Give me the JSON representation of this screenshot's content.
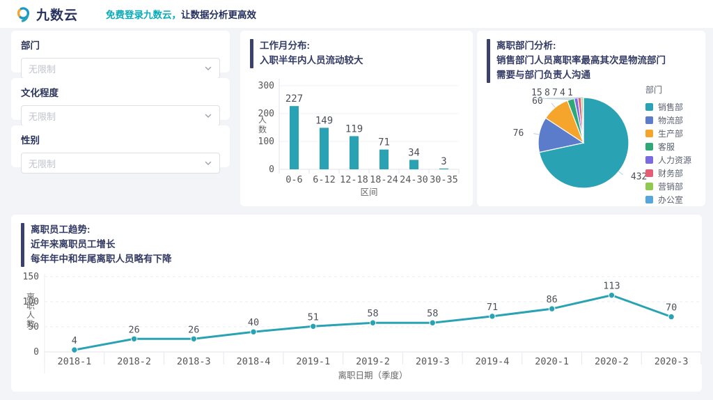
{
  "header": {
    "logo_text": "九数云",
    "promo_highlight": "免费登录九数云，",
    "promo_rest": "让数据分析更高效"
  },
  "filters": [
    {
      "label": "部门",
      "value": "无限制"
    },
    {
      "label": "文化程度",
      "value": "无限制"
    },
    {
      "label": "性别",
      "value": "无限制"
    }
  ],
  "colors": {
    "brand_teal": "#08abb8",
    "brand_navy": "#28315e",
    "title_navy": "#333a63",
    "accent_bar": "#3a426b",
    "page_bg": "#f2f4f8",
    "chart_text": "#555555",
    "value_label": "#4c4f58"
  },
  "chart_data": [
    {
      "type": "bar",
      "title_lines": [
        "工作月分布:",
        "入职半年内人员流动较大"
      ],
      "categories": [
        "0-6",
        "6-12",
        "12-18",
        "18-24",
        "24-30",
        "30-35"
      ],
      "values": [
        227,
        149,
        119,
        71,
        34,
        3
      ],
      "xlabel": "区间",
      "ylabel": "人数",
      "ylim": [
        0,
        300
      ],
      "yticks": [
        0,
        100,
        200,
        300
      ],
      "grid": true,
      "legend_position": "none",
      "color": "#29a3b4"
    },
    {
      "type": "pie",
      "title_lines": [
        "离职部门分析:",
        "销售部门人员离职率最高其次是物流部门",
        "需要与部门负责人沟通"
      ],
      "legend_title": "部门",
      "legend_position": "right",
      "labels": [
        "销售部",
        "物流部",
        "生产部",
        "客服",
        "人力资源",
        "财务部",
        "营销部",
        "办公室"
      ],
      "values": [
        432,
        76,
        60,
        15,
        8,
        7,
        4,
        1
      ],
      "colors": [
        "#29a3b4",
        "#5b7ccb",
        "#f6a52c",
        "#2ea877",
        "#7b6be0",
        "#e65c75",
        "#8fc94f",
        "#55a7db"
      ]
    },
    {
      "type": "line",
      "title_lines": [
        "离职员工趋势:",
        "近年来离职员工增长",
        "每年年中和年尾离职人员略有下降"
      ],
      "categories": [
        "2018-1",
        "2018-2",
        "2018-3",
        "2018-4",
        "2019-1",
        "2019-2",
        "2019-3",
        "2019-4",
        "2020-1",
        "2020-2",
        "2020-3"
      ],
      "values": [
        4,
        26,
        26,
        40,
        51,
        58,
        58,
        71,
        86,
        113,
        70
      ],
      "xlabel": "离职日期（季度）",
      "ylabel": "离职人数",
      "ylim": [
        0,
        150
      ],
      "yticks": [
        0,
        50,
        100,
        150
      ],
      "grid": true,
      "legend_position": "none",
      "color": "#29a3b4"
    }
  ]
}
